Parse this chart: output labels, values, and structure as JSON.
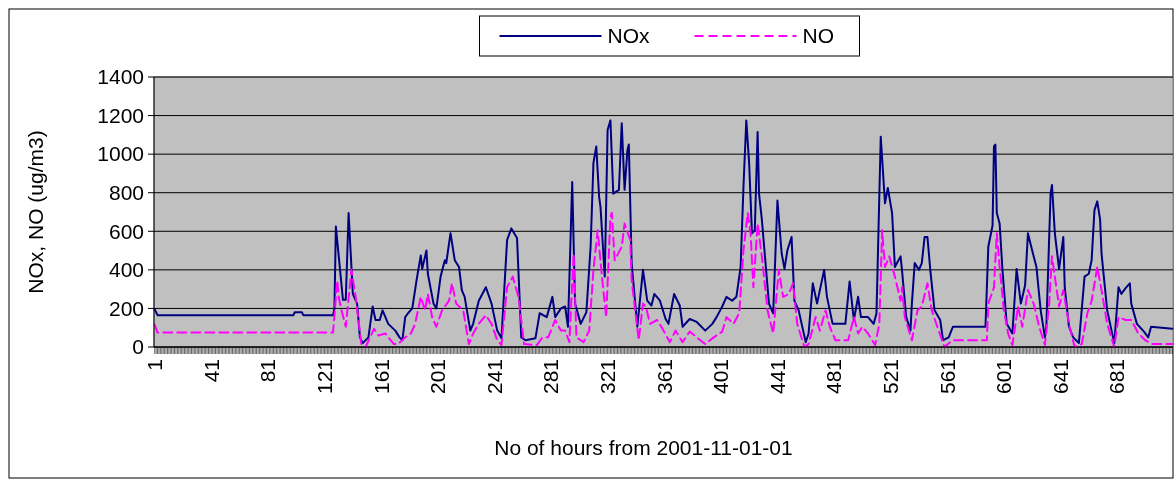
{
  "chart_data": {
    "type": "line",
    "xlabel": "No of hours from 2001-11-01-01",
    "ylabel": "NOx, NO (ug/m3)",
    "xlim": [
      0.5,
      720.5
    ],
    "xticks": [
      1,
      41,
      81,
      121,
      161,
      201,
      241,
      281,
      321,
      361,
      401,
      441,
      481,
      521,
      561,
      601,
      641,
      681
    ],
    "ylim": [
      0,
      1400
    ],
    "yticks": [
      0,
      200,
      400,
      600,
      800,
      1000,
      1200,
      1400
    ],
    "grid": "y",
    "legend": "top",
    "marker": "none",
    "series": [
      {
        "name": "NOx",
        "color": "#000080",
        "line_style": "solid",
        "x": [
          1,
          3,
          99,
          100,
          105,
          106,
          127,
          128,
          129,
          134,
          136,
          138,
          141,
          144,
          146,
          148,
          152,
          155,
          157,
          160,
          162,
          166,
          171,
          174,
          176,
          178,
          180,
          183,
          186,
          189,
          190,
          193,
          194,
          198,
          200,
          203,
          206,
          207,
          210,
          213,
          216,
          218,
          220,
          224,
          226,
          230,
          235,
          239,
          243,
          246,
          250,
          253,
          257,
          260,
          263,
          270,
          273,
          278,
          282,
          284,
          288,
          291,
          293,
          296,
          298,
          302,
          306,
          309,
          311,
          313,
          315,
          316,
          319,
          321,
          323,
          325,
          329,
          331,
          333,
          335,
          336,
          338,
          342,
          346,
          349,
          352,
          354,
          358,
          362,
          364,
          368,
          372,
          374,
          379,
          384,
          390,
          395,
          398,
          402,
          405,
          409,
          412,
          415,
          417,
          419,
          421,
          423,
          425,
          427,
          428,
          430,
          433,
          435,
          438,
          441,
          444,
          446,
          448,
          451,
          453,
          456,
          461,
          463,
          466,
          469,
          474,
          476,
          480,
          489,
          492,
          495,
          498,
          500,
          505,
          509,
          511,
          514,
          517,
          519,
          522,
          524,
          528,
          529,
          532,
          535,
          536,
          538,
          541,
          543,
          545,
          547,
          549,
          552,
          556,
          558,
          562,
          565,
          588,
          590,
          593,
          594,
          595,
          596,
          598,
          600,
          603,
          607,
          610,
          613,
          616,
          618,
          621,
          624,
          627,
          630,
          631,
          634,
          635,
          637,
          640,
          643,
          644,
          647,
          650,
          654,
          658,
          661,
          663,
          665,
          667,
          669,
          670,
          674,
          679,
          682,
          684,
          687,
          690,
          691,
          695,
          700,
          703,
          705,
          720
        ],
        "values": [
          195,
          165,
          165,
          180,
          180,
          165,
          165,
          200,
          625,
          245,
          245,
          695,
          275,
          225,
          50,
          20,
          50,
          210,
          140,
          140,
          190,
          120,
          85,
          50,
          35,
          155,
          175,
          200,
          345,
          475,
          405,
          500,
          380,
          225,
          200,
          365,
          450,
          435,
          590,
          450,
          415,
          295,
          260,
          85,
          120,
          240,
          310,
          225,
          85,
          45,
          555,
          615,
          565,
          50,
          35,
          45,
          175,
          155,
          260,
          155,
          200,
          210,
          105,
          855,
          225,
          120,
          180,
          520,
          955,
          1040,
          780,
          725,
          365,
          1125,
          1175,
          795,
          815,
          1160,
          815,
          1020,
          1050,
          435,
          105,
          400,
          240,
          215,
          275,
          240,
          145,
          120,
          275,
          215,
          105,
          145,
          130,
          85,
          120,
          155,
          210,
          260,
          240,
          260,
          415,
          830,
          1175,
          955,
          590,
          605,
          1115,
          795,
          660,
          400,
          225,
          175,
          760,
          485,
          405,
          500,
          570,
          240,
          190,
          25,
          70,
          330,
          225,
          400,
          260,
          120,
          120,
          340,
          140,
          260,
          155,
          155,
          120,
          175,
          1090,
          745,
          825,
          695,
          415,
          470,
          400,
          155,
          85,
          225,
          435,
          400,
          435,
          570,
          570,
          400,
          190,
          140,
          35,
          50,
          105,
          105,
          520,
          630,
          1040,
          1050,
          695,
          640,
          400,
          120,
          70,
          405,
          225,
          320,
          590,
          500,
          415,
          190,
          50,
          105,
          795,
          840,
          590,
          405,
          570,
          310,
          105,
          50,
          20,
          365,
          380,
          450,
          710,
          755,
          660,
          485,
          190,
          20,
          310,
          275,
          305,
          330,
          225,
          120,
          80,
          50,
          105,
          95
        ]
      },
      {
        "name": "NO",
        "color": "#ff00ff",
        "line_style": "dashed",
        "x": [
          1,
          3,
          127,
          130,
          131,
          133,
          136,
          140,
          143,
          147,
          150,
          156,
          159,
          164,
          170,
          173,
          178,
          182,
          185,
          189,
          192,
          194,
          197,
          200,
          204,
          209,
          211,
          214,
          219,
          223,
          226,
          230,
          235,
          239,
          243,
          246,
          250,
          254,
          258,
          262,
          271,
          275,
          279,
          284,
          288,
          291,
          294,
          297,
          299,
          304,
          308,
          311,
          314,
          317,
          320,
          323,
          324,
          326,
          331,
          333,
          337,
          338,
          343,
          346,
          348,
          351,
          356,
          359,
          365,
          369,
          374,
          379,
          384,
          390,
          396,
          402,
          405,
          410,
          414,
          417,
          420,
          422,
          424,
          427,
          430,
          434,
          438,
          442,
          445,
          449,
          452,
          455,
          460,
          463,
          468,
          471,
          475,
          478,
          482,
          491,
          495,
          498,
          501,
          505,
          510,
          513,
          515,
          517,
          520,
          524,
          528,
          529,
          531,
          536,
          540,
          543,
          547,
          550,
          554,
          559,
          563,
          565,
          589,
          590,
          594,
          596,
          598,
          601,
          604,
          607,
          611,
          614,
          618,
          622,
          626,
          630,
          633,
          635,
          637,
          640,
          643,
          647,
          651,
          656,
          660,
          663,
          667,
          670,
          674,
          679,
          682,
          687,
          691,
          696,
          701,
          706,
          720
        ],
        "values": [
          115,
          75,
          75,
          345,
          260,
          190,
          105,
          400,
          260,
          15,
          0,
          95,
          60,
          70,
          15,
          15,
          50,
          70,
          120,
          260,
          190,
          275,
          155,
          105,
          190,
          240,
          330,
          225,
          190,
          15,
          70,
          120,
          165,
          120,
          35,
          10,
          310,
          365,
          260,
          15,
          10,
          50,
          50,
          140,
          85,
          85,
          25,
          485,
          50,
          25,
          85,
          400,
          605,
          365,
          155,
          675,
          695,
          450,
          520,
          640,
          555,
          345,
          35,
          225,
          210,
          120,
          140,
          105,
          25,
          85,
          25,
          80,
          50,
          15,
          50,
          80,
          155,
          120,
          175,
          500,
          695,
          590,
          310,
          640,
          470,
          190,
          70,
          400,
          260,
          275,
          330,
          120,
          0,
          15,
          155,
          85,
          190,
          105,
          35,
          35,
          155,
          70,
          105,
          70,
          10,
          120,
          605,
          415,
          470,
          365,
          240,
          310,
          155,
          35,
          190,
          210,
          330,
          190,
          105,
          0,
          25,
          35,
          35,
          225,
          310,
          590,
          415,
          190,
          70,
          10,
          210,
          105,
          295,
          225,
          105,
          10,
          225,
          470,
          365,
          210,
          295,
          120,
          0,
          15,
          175,
          240,
          415,
          295,
          120,
          0,
          155,
          140,
          140,
          70,
          35,
          15,
          15
        ]
      }
    ]
  }
}
